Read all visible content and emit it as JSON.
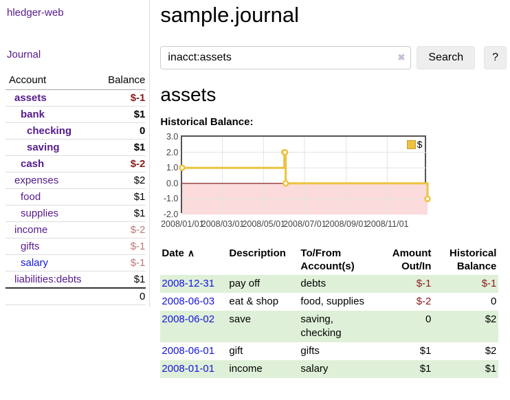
{
  "app": {
    "brand": "hledger-web"
  },
  "sidebar": {
    "journal_link": "Journal",
    "accounts": {
      "col_account": "Account",
      "col_balance": "Balance",
      "rows": [
        {
          "name": "assets",
          "balance": "$-1",
          "indent": 1,
          "bold": true,
          "tone": "neg"
        },
        {
          "name": "bank",
          "balance": "$1",
          "indent": 2,
          "bold": true,
          "tone": ""
        },
        {
          "name": "checking",
          "balance": "0",
          "indent": 3,
          "bold": true,
          "tone": ""
        },
        {
          "name": "saving",
          "balance": "$1",
          "indent": 3,
          "bold": true,
          "tone": ""
        },
        {
          "name": "cash",
          "balance": "$-2",
          "indent": 2,
          "bold": true,
          "tone": "neg"
        },
        {
          "name": "expenses",
          "balance": "$2",
          "indent": 1,
          "bold": false,
          "tone": ""
        },
        {
          "name": "food",
          "balance": "$1",
          "indent": 2,
          "bold": false,
          "tone": ""
        },
        {
          "name": "supplies",
          "balance": "$1",
          "indent": 2,
          "bold": false,
          "tone": ""
        },
        {
          "name": "income",
          "balance": "$-2",
          "indent": 1,
          "bold": false,
          "tone": "negsoft"
        },
        {
          "name": "gifts",
          "balance": "$-1",
          "indent": 2,
          "bold": false,
          "tone": "negsoft"
        },
        {
          "name": "salary",
          "balance": "$-1",
          "indent": 2,
          "bold": false,
          "tone": "negsoft",
          "link_color": "blue"
        },
        {
          "name": "liabilities:debts",
          "balance": "$1",
          "indent": 1,
          "bold": false,
          "tone": ""
        }
      ],
      "total": "0"
    }
  },
  "header": {
    "title": "sample.journal"
  },
  "search": {
    "value": "inacct:assets",
    "clear_icon": "✖",
    "search_button": "Search",
    "help_button": "?"
  },
  "register": {
    "heading": "assets",
    "chart_title": "Historical Balance:",
    "columns": {
      "date": "Date",
      "sort_icon": "∧",
      "description": "Description",
      "accounts": "To/From Account(s)",
      "amount": "Amount Out/In",
      "balance": "Historical Balance"
    },
    "rows": [
      {
        "date": "2008-12-31",
        "description": "pay off",
        "accounts": "debts",
        "amount": "$-1",
        "amount_neg": true,
        "balance": "$-1",
        "balance_neg": true,
        "shaded": true
      },
      {
        "date": "2008-06-03",
        "description": "eat & shop",
        "accounts": "food, supplies",
        "amount": "$-2",
        "amount_neg": true,
        "balance": "0",
        "balance_neg": false,
        "shaded": false
      },
      {
        "date": "2008-06-02",
        "description": "save",
        "accounts": "saving, checking",
        "amount": "0",
        "amount_neg": false,
        "balance": "$2",
        "balance_neg": false,
        "shaded": true
      },
      {
        "date": "2008-06-01",
        "description": "gift",
        "accounts": "gifts",
        "amount": "$1",
        "amount_neg": false,
        "balance": "$2",
        "balance_neg": false,
        "shaded": false
      },
      {
        "date": "2008-01-01",
        "description": "income",
        "accounts": "salary",
        "amount": "$1",
        "amount_neg": false,
        "balance": "$1",
        "balance_neg": false,
        "shaded": true
      }
    ]
  },
  "chart_data": {
    "type": "line",
    "style": "step",
    "title": "Historical Balance",
    "series": [
      {
        "name": "$",
        "color": "#EDC240",
        "points": [
          {
            "date": "2008-01-01",
            "day": 0,
            "value": 1
          },
          {
            "date": "2008-06-01",
            "day": 152,
            "value": 2
          },
          {
            "date": "2008-06-02",
            "day": 153,
            "value": 2
          },
          {
            "date": "2008-06-03",
            "day": 154,
            "value": 0
          },
          {
            "date": "2008-12-31",
            "day": 365,
            "value": -1
          }
        ]
      }
    ],
    "xlim_days": [
      0,
      365
    ],
    "ylim": [
      -2,
      3
    ],
    "yticks": [
      "3.0",
      "2.0",
      "1.0",
      "0.0",
      "-1.0",
      "-2.0"
    ],
    "xticks": [
      {
        "label": "2008/01/01",
        "day": 0
      },
      {
        "label": "2008/03/01",
        "day": 60
      },
      {
        "label": "2008/05/01",
        "day": 121
      },
      {
        "label": "2008/07/01",
        "day": 182
      },
      {
        "label": "2008/09/01",
        "day": 244
      },
      {
        "label": "2008/11/01",
        "day": 305
      }
    ],
    "legend": {
      "label": "$",
      "position": "top-right"
    },
    "grid": true,
    "gridline_color": "#E3E3E3",
    "negative_zone_fill": "#FBDBDB",
    "zero_line_color": "#7A1010"
  },
  "colors": {
    "link_purple": "#551A8B",
    "link_blue": "#1414E0",
    "negative_strong": "#8B1A1A",
    "negative_soft": "#BD7676",
    "row_green": "#DFF0D8",
    "series_gold": "#EDC240"
  }
}
